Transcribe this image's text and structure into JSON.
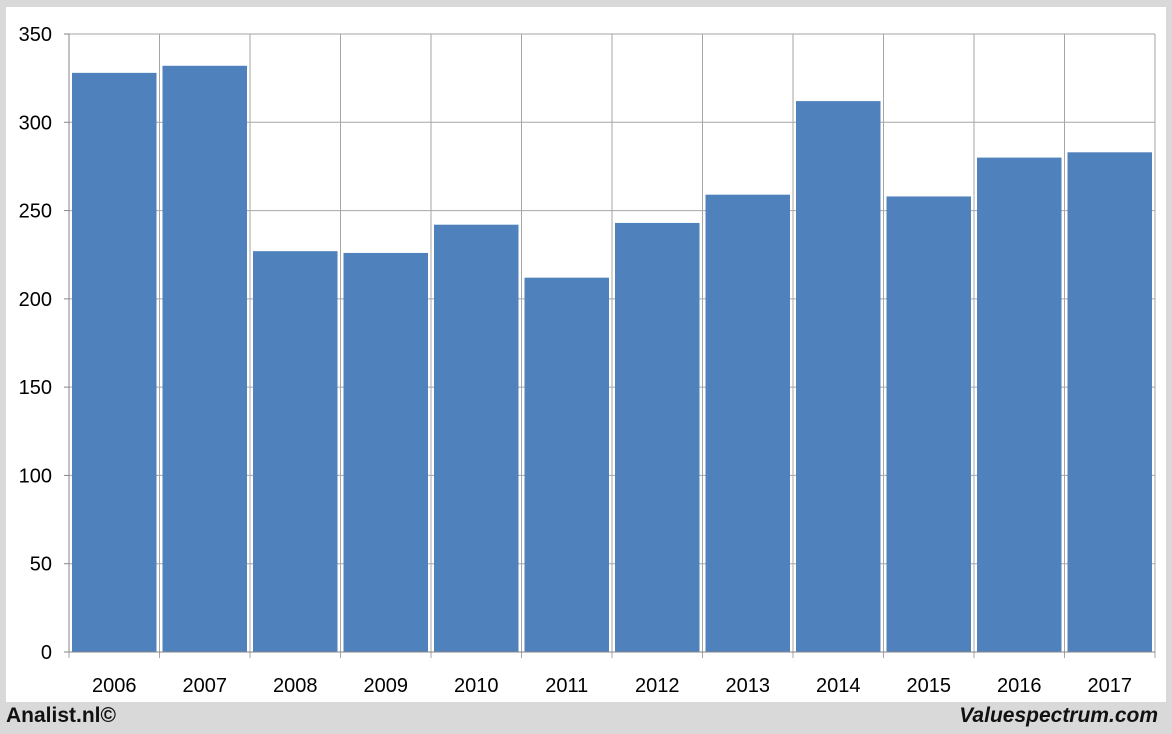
{
  "chart_data": {
    "type": "bar",
    "title": "",
    "xlabel": "",
    "ylabel": "",
    "categories": [
      "2006",
      "2007",
      "2008",
      "2009",
      "2010",
      "2011",
      "2012",
      "2013",
      "2014",
      "2015",
      "2016",
      "2017"
    ],
    "values": [
      328,
      332,
      227,
      226,
      242,
      212,
      243,
      259,
      312,
      258,
      280,
      283
    ],
    "ylim": [
      0,
      350
    ],
    "yticks": [
      0,
      50,
      100,
      150,
      200,
      250,
      300,
      350
    ],
    "grid": true,
    "legend": "none",
    "bar_color": "#4f81bd",
    "grid_color": "#a6a6a6"
  },
  "footer": {
    "left_credit": "Analist.nl©",
    "right_credit": "Valuespectrum.com"
  }
}
